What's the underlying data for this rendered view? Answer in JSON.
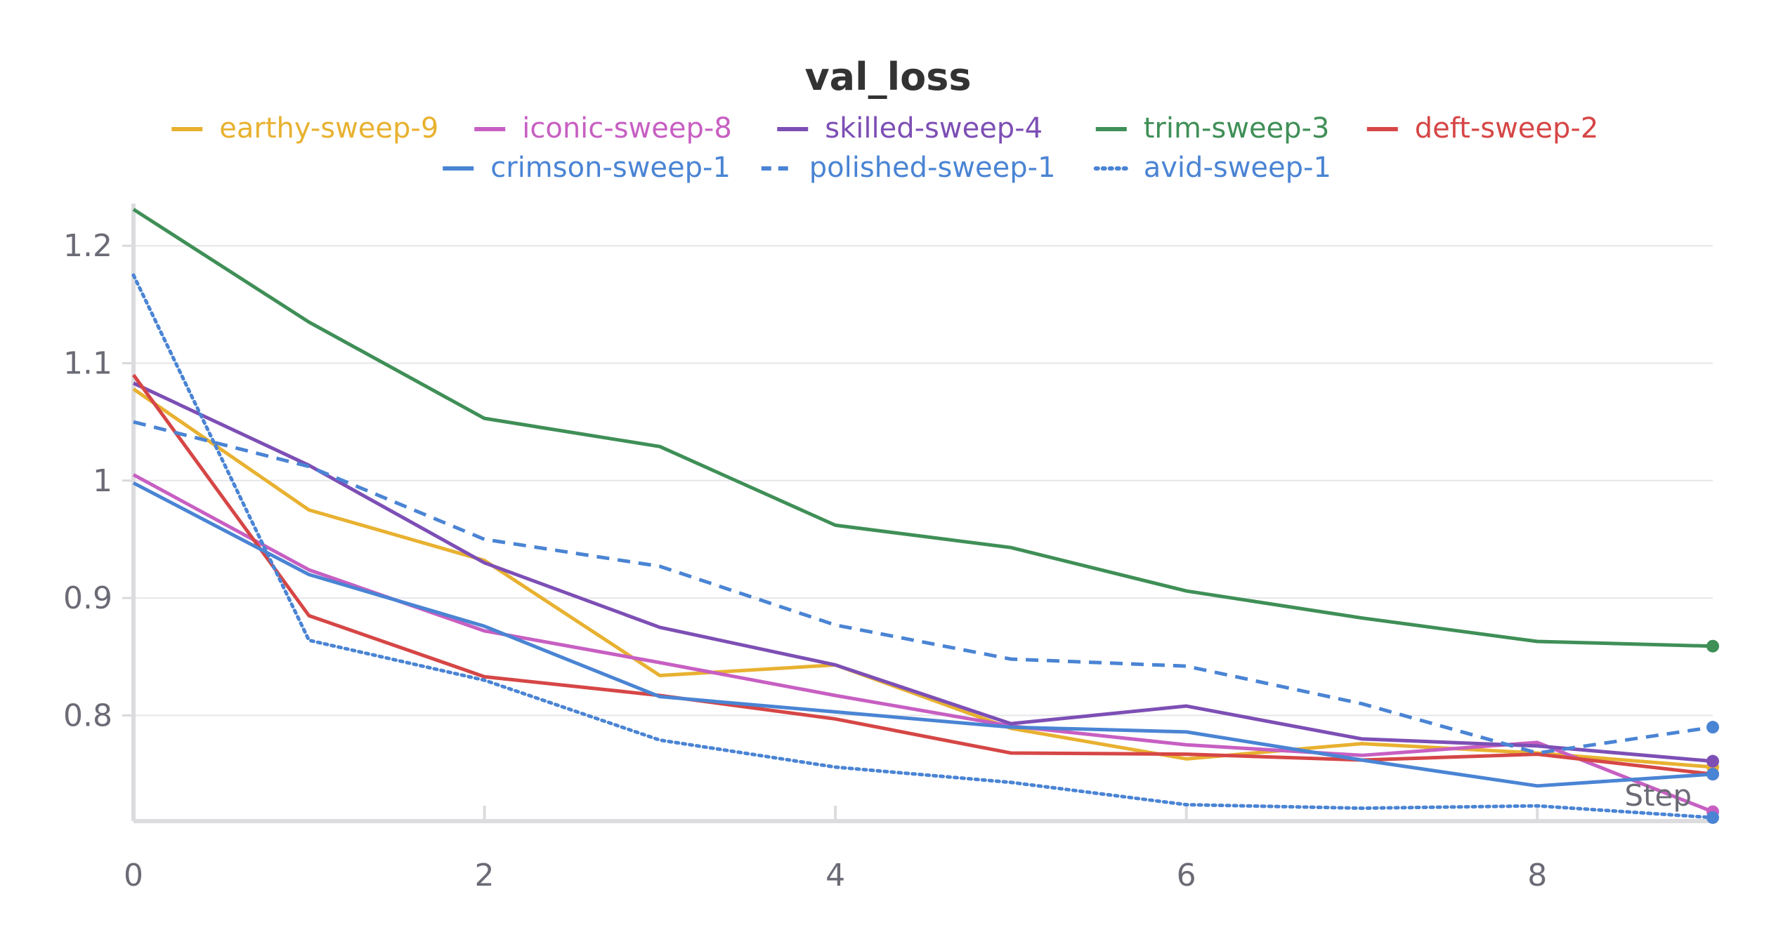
{
  "chart_data": {
    "type": "line",
    "title": "val_loss",
    "xlabel": "Step",
    "ylabel": "",
    "xlim": [
      0,
      9
    ],
    "ylim": [
      0.71,
      1.23
    ],
    "x_ticks": [
      0,
      2,
      4,
      6,
      8
    ],
    "y_ticks": [
      0.8,
      0.9,
      1,
      1.1,
      1.2
    ],
    "y_tick_labels": [
      "0.8",
      "0.9",
      "1",
      "1.1",
      "1.2"
    ],
    "grid": "horizontal",
    "legend_position": "top",
    "x": [
      0,
      1,
      2,
      3,
      4,
      5,
      6,
      7,
      8,
      9
    ],
    "series": [
      {
        "name": "earthy-sweep-9",
        "color": "#e8b130",
        "dash": "solid",
        "values": [
          1.078,
          0.975,
          0.932,
          0.834,
          0.843,
          0.789,
          0.763,
          0.776,
          0.768,
          0.756
        ]
      },
      {
        "name": "iconic-sweep-8",
        "color": "#c75fc2",
        "dash": "solid",
        "values": [
          1.005,
          0.924,
          0.872,
          0.845,
          0.817,
          0.791,
          0.775,
          0.766,
          0.777,
          0.718
        ]
      },
      {
        "name": "skilled-sweep-4",
        "color": "#7d4fb5",
        "dash": "solid",
        "values": [
          1.083,
          1.013,
          0.93,
          0.875,
          0.843,
          0.793,
          0.808,
          0.78,
          0.774,
          0.761
        ]
      },
      {
        "name": "trim-sweep-3",
        "color": "#3f8f57",
        "dash": "solid",
        "values": [
          1.231,
          1.135,
          1.053,
          1.029,
          0.962,
          0.943,
          0.906,
          0.883,
          0.863,
          0.859
        ]
      },
      {
        "name": "deft-sweep-2",
        "color": "#d64646",
        "dash": "solid",
        "values": [
          1.09,
          0.885,
          0.833,
          0.817,
          0.797,
          0.768,
          0.767,
          0.762,
          0.767,
          0.75
        ]
      },
      {
        "name": "crimson-sweep-1",
        "color": "#4a84d4",
        "dash": "solid",
        "values": [
          0.998,
          0.92,
          0.876,
          0.816,
          0.803,
          0.79,
          0.786,
          0.762,
          0.74,
          0.75
        ]
      },
      {
        "name": "polished-sweep-1",
        "color": "#4a84d4",
        "dash": "dashed",
        "values": [
          1.05,
          1.012,
          0.95,
          0.927,
          0.877,
          0.848,
          0.842,
          0.81,
          0.768,
          0.79
        ]
      },
      {
        "name": "avid-sweep-1",
        "color": "#4a84d4",
        "dash": "dotted",
        "values": [
          1.175,
          0.864,
          0.83,
          0.779,
          0.756,
          0.743,
          0.724,
          0.721,
          0.723,
          0.713
        ]
      }
    ]
  }
}
